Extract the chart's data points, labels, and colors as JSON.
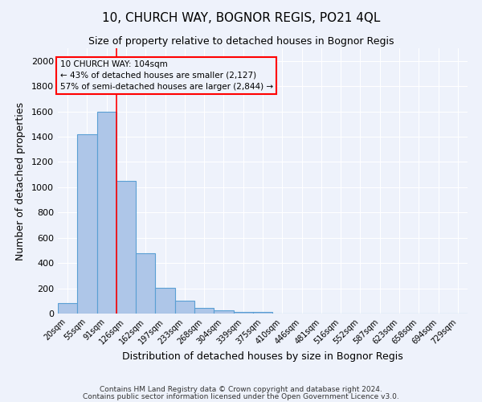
{
  "title": "10, CHURCH WAY, BOGNOR REGIS, PO21 4QL",
  "subtitle": "Size of property relative to detached houses in Bognor Regis",
  "xlabel": "Distribution of detached houses by size in Bognor Regis",
  "ylabel": "Number of detached properties",
  "categories": [
    "20sqm",
    "55sqm",
    "91sqm",
    "126sqm",
    "162sqm",
    "197sqm",
    "233sqm",
    "268sqm",
    "304sqm",
    "339sqm",
    "375sqm",
    "410sqm",
    "446sqm",
    "481sqm",
    "516sqm",
    "552sqm",
    "587sqm",
    "623sqm",
    "658sqm",
    "694sqm",
    "729sqm"
  ],
  "values": [
    80,
    1420,
    1600,
    1050,
    480,
    205,
    105,
    45,
    25,
    15,
    10,
    0,
    0,
    0,
    0,
    0,
    0,
    0,
    0,
    0,
    0
  ],
  "bar_color": "#aec6e8",
  "bar_edge_color": "#5a9fd4",
  "red_line_index": 2,
  "property_label": "10 CHURCH WAY: 104sqm",
  "annotation_line1": "← 43% of detached houses are smaller (2,127)",
  "annotation_line2": "57% of semi-detached houses are larger (2,844) →",
  "ylim": [
    0,
    2100
  ],
  "yticks": [
    0,
    200,
    400,
    600,
    800,
    1000,
    1200,
    1400,
    1600,
    1800,
    2000
  ],
  "footer_line1": "Contains HM Land Registry data © Crown copyright and database right 2024.",
  "footer_line2": "Contains public sector information licensed under the Open Government Licence v3.0.",
  "background_color": "#eef2fb",
  "grid_color": "#ffffff"
}
